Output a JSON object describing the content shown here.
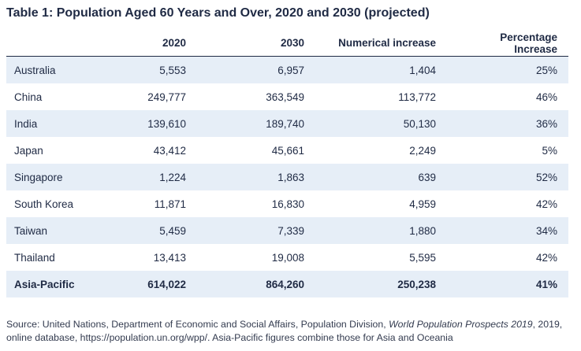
{
  "title": "Table 1: Population Aged 60 Years and Over, 2020 and 2030 (projected)",
  "table": {
    "headers": [
      "",
      "2020",
      "2030",
      "Numerical increase",
      "Percentage Increase"
    ],
    "rows": [
      [
        "Australia",
        "5,553",
        "6,957",
        "1,404",
        "25%"
      ],
      [
        "China",
        "249,777",
        "363,549",
        "113,772",
        "46%"
      ],
      [
        "India",
        "139,610",
        "189,740",
        "50,130",
        "36%"
      ],
      [
        "Japan",
        "43,412",
        "45,661",
        "2,249",
        "5%"
      ],
      [
        "Singapore",
        "1,224",
        "1,863",
        "639",
        "52%"
      ],
      [
        "South Korea",
        "11,871",
        "16,830",
        "4,959",
        "42%"
      ],
      [
        "Taiwan",
        "5,459",
        "7,339",
        "1,880",
        "34%"
      ],
      [
        "Thailand",
        "13,413",
        "19,008",
        "5,595",
        "42%"
      ],
      [
        "Asia-Pacific",
        "614,022",
        "864,260",
        "250,238",
        "41%"
      ]
    ]
  },
  "source": {
    "prefix": "Source: United Nations, Department of Economic and Social Affairs, Population Division,",
    "publication": "World Population Prospects 2019",
    "suffix": ", 2019, online database, https://population.un.org/wpp/. Asia-Pacific figures combine those for Asia and Oceania"
  },
  "colors": {
    "shaded_row": "#e6eef7",
    "text": "#1f2a44"
  }
}
